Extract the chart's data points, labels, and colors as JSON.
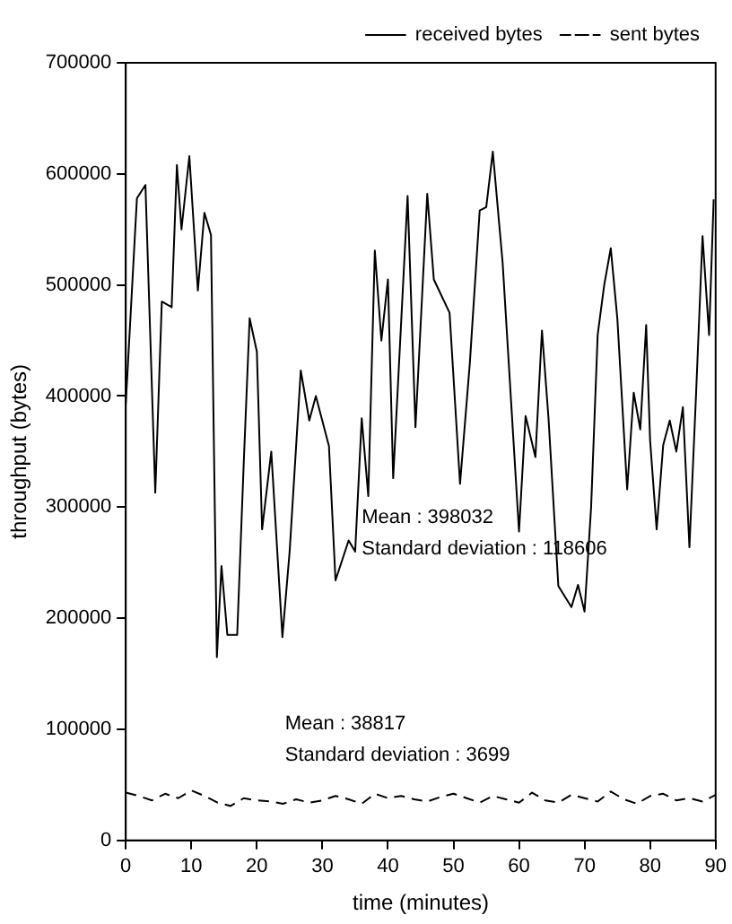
{
  "chart_data": {
    "type": "line",
    "xlabel": "time (minutes)",
    "ylabel": "throughput (bytes)",
    "xlim": [
      0,
      90
    ],
    "xticks": [
      0,
      10,
      20,
      30,
      40,
      50,
      60,
      70,
      80,
      90
    ],
    "ylim": [
      0,
      700000
    ],
    "yticks": [
      0,
      100000,
      200000,
      300000,
      400000,
      500000,
      600000,
      700000
    ],
    "grid": false,
    "legend": "top right",
    "marker": "none",
    "annotations": [
      "Mean : 398032",
      "Standard deviation : 118606",
      "Mean : 38817",
      "Standard deviation : 3699"
    ],
    "series": [
      {
        "name": "received bytes",
        "color": "#000000",
        "line_style": "solid",
        "x": [
          0,
          1.7,
          3,
          4.5,
          5.5,
          7,
          7.8,
          8.5,
          9.7,
          11,
          12,
          13,
          13.9,
          14.6,
          15.5,
          17,
          18,
          18.9,
          20,
          20.8,
          22.2,
          23.9,
          25,
          26.7,
          28,
          29,
          31,
          32,
          34,
          35,
          36,
          37,
          38,
          39,
          40,
          40.8,
          43,
          44.2,
          46,
          47,
          49.4,
          51,
          52.5,
          54,
          55,
          56,
          57.5,
          60,
          61,
          62.5,
          63.5,
          64.5,
          66,
          68,
          69,
          70,
          71,
          72,
          73,
          74,
          75,
          76.5,
          77.5,
          78.5,
          79.4,
          80,
          81,
          82,
          83,
          84,
          85,
          86,
          87,
          88,
          89,
          89.7
        ],
        "values": [
          393000,
          578000,
          590000,
          313000,
          485000,
          480000,
          608000,
          550000,
          616000,
          495000,
          565000,
          545000,
          165000,
          247000,
          185000,
          185000,
          340000,
          470000,
          440000,
          280000,
          350000,
          183000,
          260000,
          423000,
          378000,
          400000,
          355000,
          234000,
          270000,
          260000,
          380000,
          310000,
          531000,
          450000,
          505000,
          326000,
          580000,
          372000,
          582000,
          505000,
          475000,
          321000,
          430000,
          567000,
          570000,
          620000,
          520000,
          278000,
          382000,
          345000,
          459000,
          380000,
          229000,
          210000,
          230000,
          206000,
          300000,
          455000,
          500000,
          533000,
          470000,
          316000,
          403000,
          370000,
          464000,
          360000,
          280000,
          356000,
          378000,
          350000,
          390000,
          264000,
          400000,
          544000,
          455000,
          577000
        ]
      },
      {
        "name": "sent bytes",
        "color": "#000000",
        "line_style": "dashed",
        "x": [
          0,
          2,
          4,
          6,
          8,
          10,
          12,
          14,
          16,
          18,
          20,
          22,
          24,
          26,
          28,
          30,
          32,
          34,
          36,
          38,
          40,
          42,
          44,
          46,
          48,
          50,
          52,
          54,
          56,
          58,
          60,
          62,
          64,
          66,
          68,
          70,
          72,
          74,
          76,
          78,
          80,
          82,
          84,
          86,
          88,
          90
        ],
        "values": [
          43000,
          40000,
          36000,
          42000,
          38000,
          45000,
          40000,
          34000,
          31000,
          38000,
          36000,
          35000,
          33000,
          37000,
          34000,
          36000,
          40000,
          37000,
          33000,
          42000,
          38000,
          40000,
          37000,
          35000,
          39000,
          42000,
          38000,
          34000,
          40000,
          37000,
          34000,
          43000,
          36000,
          34000,
          41000,
          38000,
          35000,
          44000,
          37000,
          33000,
          40000,
          42000,
          36000,
          38000,
          35000,
          41000
        ]
      }
    ]
  }
}
